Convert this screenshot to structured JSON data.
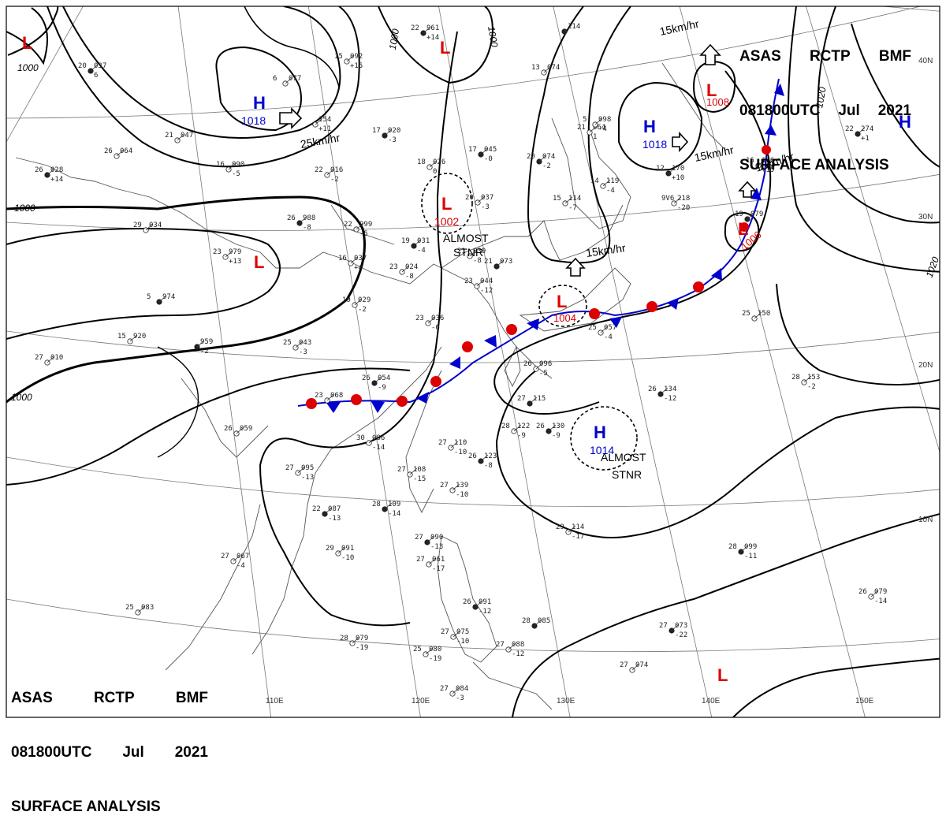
{
  "title": {
    "line1": [
      "ASAS",
      "RCTP",
      "BMF"
    ],
    "line2": [
      "081800UTC",
      "Jul",
      "2021"
    ],
    "line3": "SURFACE ANALYSIS"
  },
  "colors": {
    "isobar": "#000000",
    "coast": "#555555",
    "grid": "#777777",
    "high": "#0000cc",
    "low": "#dd0000",
    "warm_front": "#dd0000",
    "cold_front": "#0000cc"
  },
  "grid_labels": {
    "lon": [
      "110E",
      "120E",
      "130E",
      "140E",
      "150E"
    ],
    "lat": [
      "40N",
      "30N",
      "20N",
      "10N"
    ]
  },
  "isobar_labels": [
    "1000",
    "1000",
    "1000",
    "1000",
    "1020",
    "1020"
  ],
  "pressure_centers": [
    {
      "type": "L",
      "value": ""
    },
    {
      "type": "H",
      "value": "1018"
    },
    {
      "type": "L",
      "value": ""
    },
    {
      "type": "L",
      "value": "1008"
    },
    {
      "type": "H",
      "value": "1018"
    },
    {
      "type": "H",
      "value": ""
    },
    {
      "type": "L",
      "value": "1002"
    },
    {
      "type": "L",
      "value": ""
    },
    {
      "type": "L",
      "value": "1006"
    },
    {
      "type": "L",
      "value": "1004"
    },
    {
      "type": "H",
      "value": "1014"
    },
    {
      "type": "L",
      "value": ""
    }
  ],
  "annotations": {
    "almost_stnr_1": [
      "ALMOST",
      "STNR"
    ],
    "almost_stnr_2": [
      "ALMOST",
      "STNR"
    ],
    "speed_25_west": "25km/hr",
    "speed_15_top": "15km/hr",
    "speed_15_mid": "15km/hr",
    "speed_15_right": "15km/hr",
    "speed_15_east": "15km/hr"
  },
  "stations": [
    [
      "22",
      "961",
      "+14"
    ],
    [
      "15",
      "092",
      "+15"
    ],
    [
      "6",
      "077",
      ""
    ],
    [
      "20",
      "037",
      "6"
    ],
    [
      "21",
      "047",
      ""
    ],
    [
      "26",
      "064",
      ""
    ],
    [
      "26",
      "028",
      "+14"
    ],
    [
      "16",
      "090",
      "-5"
    ],
    [
      "22",
      "016",
      "-2"
    ],
    [
      "17",
      "020",
      "-3"
    ],
    [
      "",
      "154",
      "+11"
    ],
    [
      "18",
      "026",
      "0"
    ],
    [
      "17",
      "045",
      "-0"
    ],
    [
      "20",
      "037",
      "-3"
    ],
    [
      "13",
      "074",
      ""
    ],
    [
      "",
      "114",
      ""
    ],
    [
      "21",
      "064",
      "1"
    ],
    [
      "5",
      "098",
      "-4"
    ],
    [
      "20",
      "074",
      "-2"
    ],
    [
      "15",
      "114",
      "-7"
    ],
    [
      "14",
      "119",
      "-4"
    ],
    [
      "12",
      "170",
      "+10"
    ],
    [
      "9V6",
      "218",
      "-20"
    ],
    [
      "16",
      "156",
      "+15"
    ],
    [
      "19",
      "079",
      ""
    ],
    [
      "29",
      "034",
      ""
    ],
    [
      "23",
      "979",
      "+13"
    ],
    [
      "26",
      "988",
      "-8"
    ],
    [
      "22",
      "999",
      "-5"
    ],
    [
      "16",
      "037",
      "+4"
    ],
    [
      "19",
      "031",
      "-4"
    ],
    [
      "21",
      "039",
      "-8"
    ],
    [
      "23",
      "024",
      "-8"
    ],
    [
      "21",
      "073",
      ""
    ],
    [
      "23",
      "044",
      "-12"
    ],
    [
      "19",
      "029",
      "-2"
    ],
    [
      "5",
      "974",
      ""
    ],
    [
      "15",
      "920",
      ""
    ],
    [
      "27",
      "010",
      ""
    ],
    [
      "",
      "959",
      "-2"
    ],
    [
      "25",
      "043",
      "-3"
    ],
    [
      "23",
      "036",
      "-6"
    ],
    [
      "26",
      "054",
      "-9"
    ],
    [
      "23",
      "068",
      ""
    ],
    [
      "26",
      "096",
      "-5"
    ],
    [
      "27",
      "115",
      ""
    ],
    [
      "25",
      "057",
      "-4"
    ],
    [
      "25",
      "150",
      ""
    ],
    [
      "26",
      "134",
      "-12"
    ],
    [
      "28",
      "153",
      "-2"
    ],
    [
      "28",
      "122",
      "-9"
    ],
    [
      "26",
      "130",
      "-9"
    ],
    [
      "30",
      "086",
      "-14"
    ],
    [
      "27",
      "110",
      "-10"
    ],
    [
      "26",
      "123",
      "-8"
    ],
    [
      "26",
      "059",
      ""
    ],
    [
      "27",
      "095",
      "-13"
    ],
    [
      "22",
      "087",
      "-13"
    ],
    [
      "27",
      "108",
      "-15"
    ],
    [
      "27",
      "139",
      "-10"
    ],
    [
      "28",
      "109",
      "-14"
    ],
    [
      "27",
      "067",
      "-4"
    ],
    [
      "29",
      "091",
      "-10"
    ],
    [
      "27",
      "090",
      "-13"
    ],
    [
      "27",
      "061",
      "-17"
    ],
    [
      "29",
      "114",
      "-17"
    ],
    [
      "28",
      "099",
      "-11"
    ],
    [
      "26",
      "079",
      "-14"
    ],
    [
      "25",
      "083",
      ""
    ],
    [
      "26",
      "091",
      "-12"
    ],
    [
      "28",
      "079",
      "-19"
    ],
    [
      "25",
      "080",
      "-19"
    ],
    [
      "28",
      "085",
      ""
    ],
    [
      "27",
      "075",
      "-10"
    ],
    [
      "27",
      "088",
      "-12"
    ],
    [
      "27",
      "073",
      "-22"
    ],
    [
      "27",
      "074",
      ""
    ],
    [
      "27",
      "084",
      "-3"
    ],
    [
      "22",
      "274",
      "+1"
    ]
  ]
}
